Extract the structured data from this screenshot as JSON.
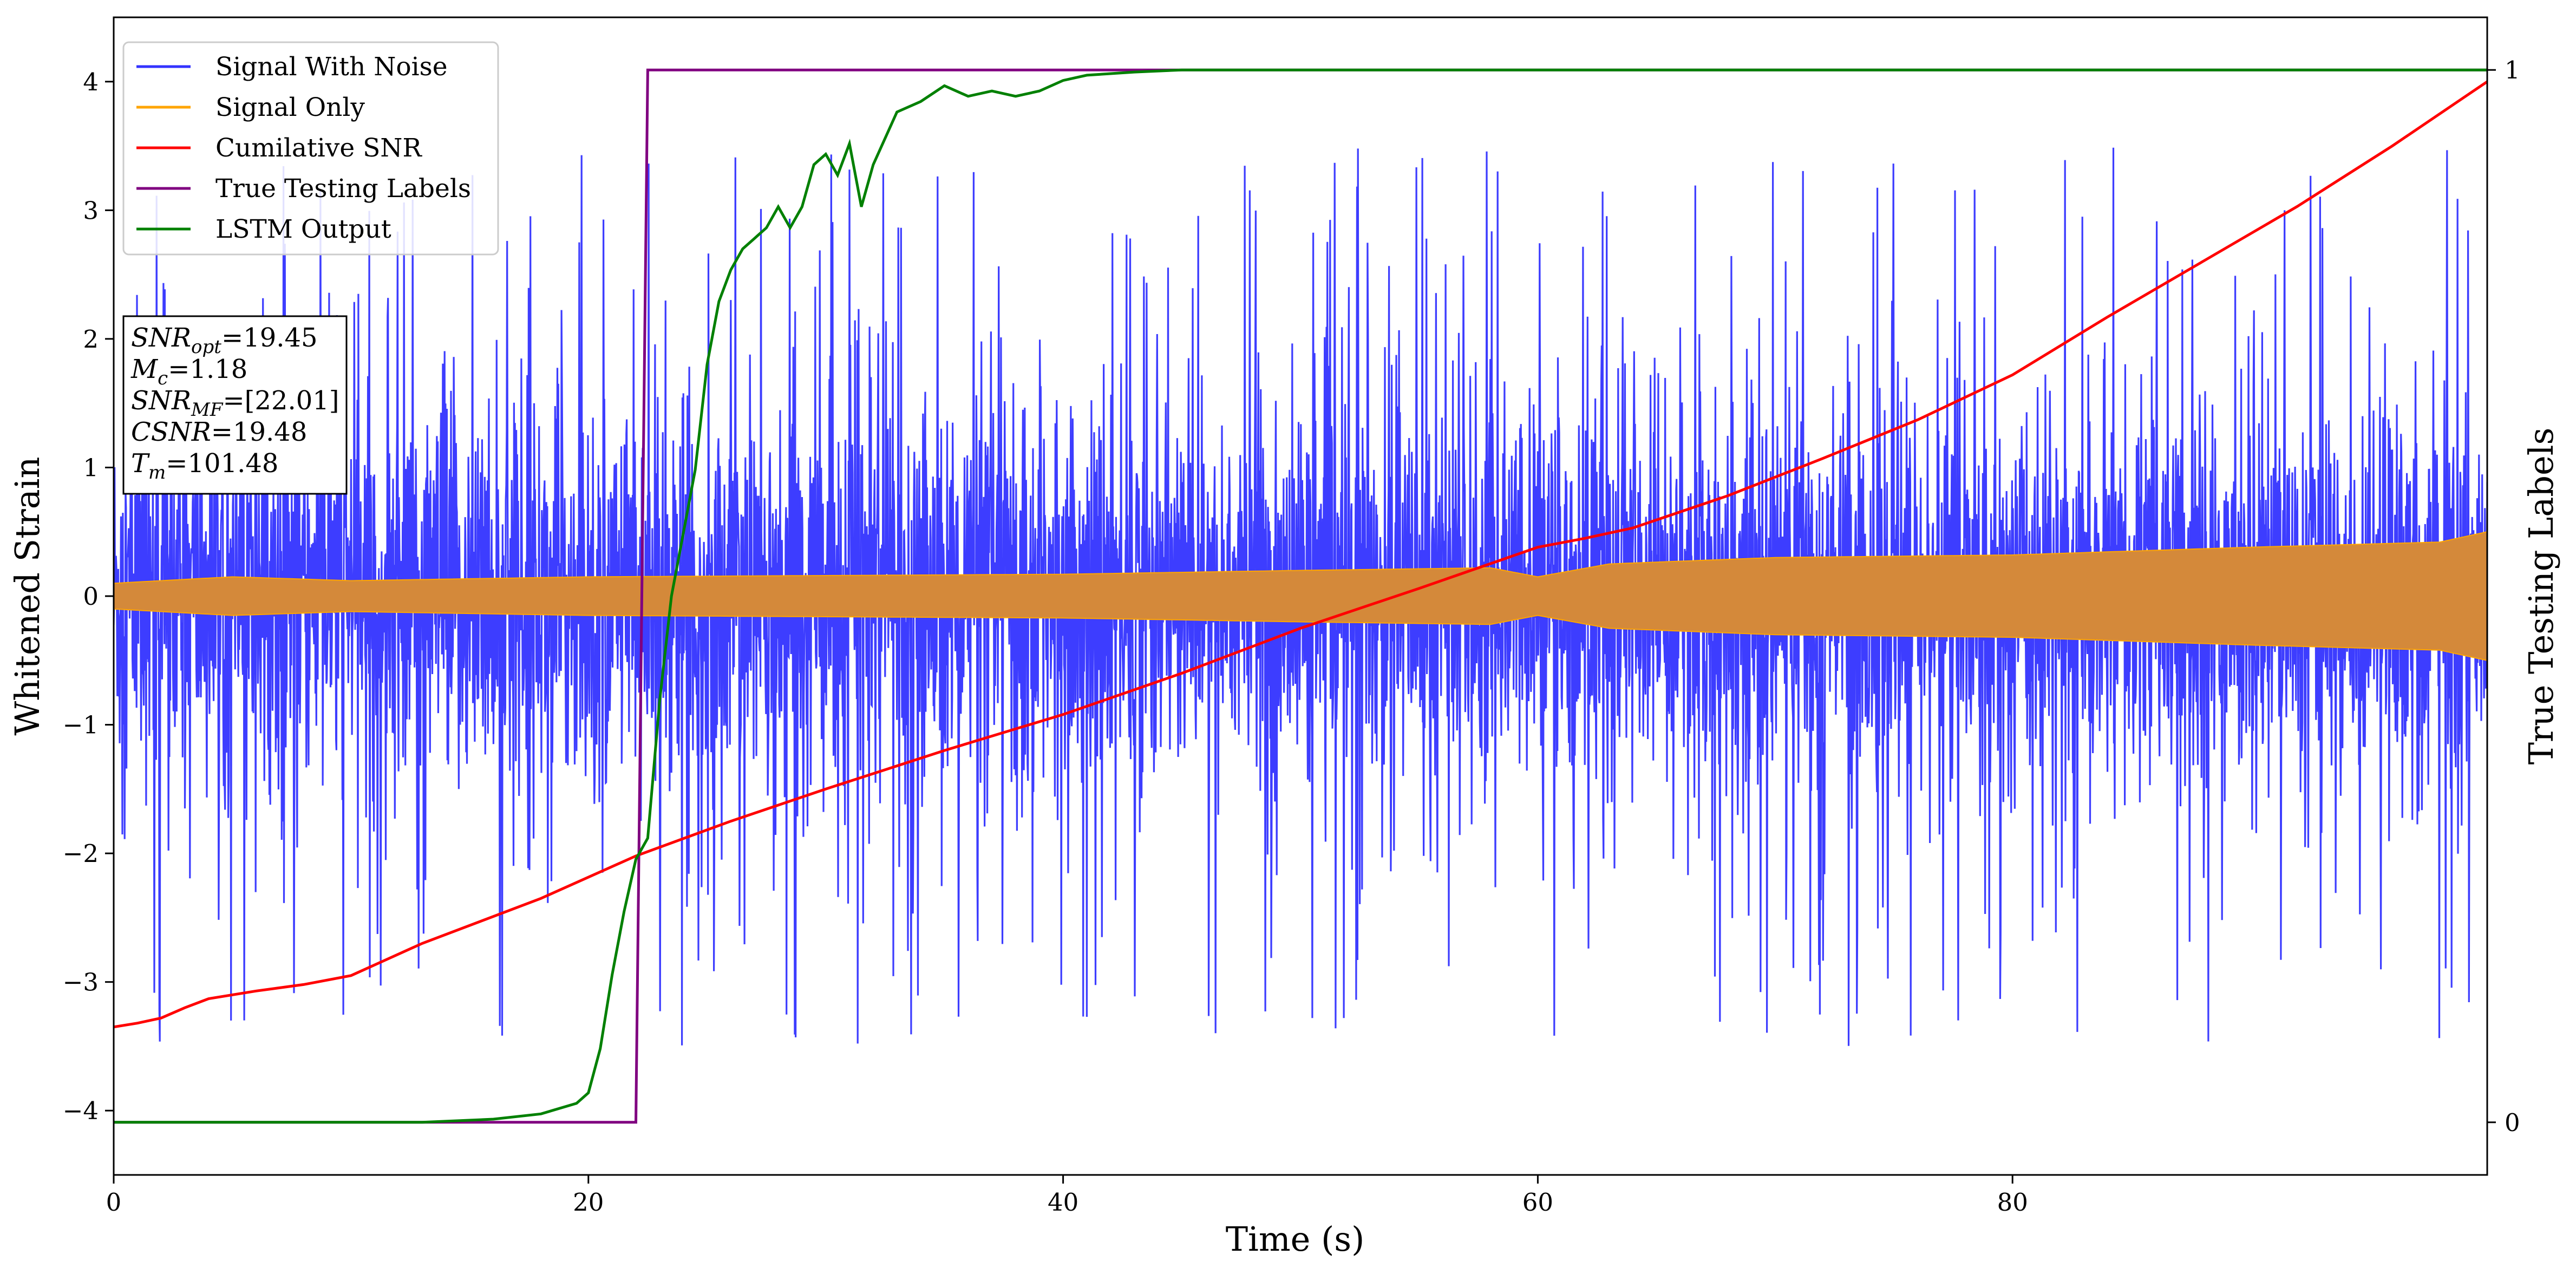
{
  "chart_data": {
    "type": "line",
    "xlabel": "Time (s)",
    "ylabel": "Whitened Strain",
    "ylabel_right": "True Testing Labels",
    "xlim": [
      0,
      100
    ],
    "ylim": [
      -4.5,
      4.5
    ],
    "ylim_right": [
      -0.05,
      1.05
    ],
    "x_ticks": [
      "0",
      "20",
      "40",
      "60",
      "80"
    ],
    "y_ticks": [
      "−4",
      "−3",
      "−2",
      "−1",
      "0",
      "1",
      "2",
      "3",
      "4"
    ],
    "y_right_ticks": [
      "0",
      "1"
    ],
    "grid": false,
    "legend_position": "top-left",
    "series": [
      {
        "name": "Signal With Noise",
        "color": "#3333ff",
        "kind": "noisy_strain",
        "typical_range": [
          -1.5,
          1.5
        ],
        "peak_range": [
          -4.1,
          3.95
        ],
        "axis": "left"
      },
      {
        "name": "Signal Only",
        "color": "#ffa500",
        "fill_color": "#d4893a",
        "kind": "chirp_envelope",
        "x": [
          0,
          5,
          10,
          20,
          30,
          40,
          50,
          58,
          60,
          63,
          70,
          80,
          90,
          98,
          100
        ],
        "amplitude": [
          0.1,
          0.15,
          0.12,
          0.15,
          0.16,
          0.17,
          0.2,
          0.22,
          0.15,
          0.25,
          0.3,
          0.32,
          0.38,
          0.42,
          0.5
        ],
        "axis": "left"
      },
      {
        "name": "Cumilative SNR",
        "color": "#ff0000",
        "axis": "left",
        "x": [
          0,
          1,
          2,
          3,
          4,
          6,
          8,
          10,
          13,
          18,
          22,
          26,
          30,
          35,
          40,
          45,
          50,
          55,
          60,
          62,
          64,
          68,
          72,
          76,
          80,
          84,
          88,
          92,
          96,
          100
        ],
        "y": [
          -3.35,
          -3.32,
          -3.28,
          -3.2,
          -3.13,
          -3.07,
          -3.02,
          -2.95,
          -2.7,
          -2.35,
          -2.02,
          -1.75,
          -1.5,
          -1.2,
          -0.92,
          -0.6,
          -0.25,
          0.06,
          0.38,
          0.45,
          0.53,
          0.78,
          1.07,
          1.37,
          1.72,
          2.17,
          2.6,
          3.03,
          3.5,
          4.0
        ]
      },
      {
        "name": "True Testing Labels",
        "color": "#800080",
        "axis": "right",
        "x": [
          0,
          22,
          22.5,
          100
        ],
        "y": [
          0,
          0,
          1,
          1
        ]
      },
      {
        "name": "LSTM Output",
        "color": "#008000",
        "axis": "right",
        "x": [
          0,
          13,
          16,
          18,
          19.5,
          20,
          20.5,
          21,
          21.5,
          22,
          22.5,
          23,
          23.5,
          24,
          24.5,
          25,
          25.5,
          26,
          26.5,
          27,
          27.5,
          28,
          28.5,
          29,
          29.5,
          30,
          30.5,
          31,
          31.5,
          32,
          33,
          34,
          35,
          36,
          37,
          38,
          39,
          40,
          41,
          43,
          45,
          100
        ],
        "y": [
          0,
          0,
          0.003,
          0.008,
          0.018,
          0.028,
          0.07,
          0.14,
          0.2,
          0.25,
          0.27,
          0.4,
          0.5,
          0.56,
          0.62,
          0.72,
          0.78,
          0.81,
          0.83,
          0.84,
          0.85,
          0.87,
          0.85,
          0.87,
          0.91,
          0.92,
          0.9,
          0.93,
          0.87,
          0.91,
          0.96,
          0.97,
          0.985,
          0.975,
          0.98,
          0.975,
          0.98,
          0.99,
          0.995,
          0.998,
          1,
          1
        ]
      }
    ]
  },
  "info_box": {
    "lines": [
      {
        "name": "SNR",
        "sub": "opt",
        "value": "=19.45"
      },
      {
        "name": "M",
        "sub": "c",
        "value": "=1.18"
      },
      {
        "name": "SNR",
        "sub": "MF",
        "value": "=[22.01]"
      },
      {
        "name": "CSNR",
        "sub": "",
        "value": "=19.48"
      },
      {
        "name": "T",
        "sub": "m",
        "value": "=101.48"
      }
    ]
  }
}
